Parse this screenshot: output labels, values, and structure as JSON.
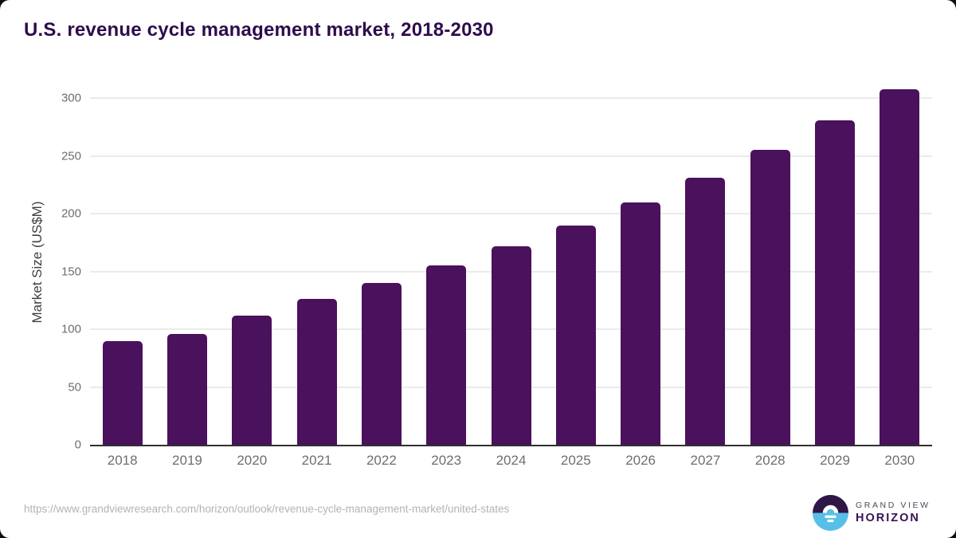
{
  "page": {
    "title": "U.S. revenue cycle management market, 2018-2030",
    "source_url": "https://www.grandviewresearch.com/horizon/outlook/revenue-cycle-management-market/united-states",
    "logo": {
      "line1": "GRAND VIEW",
      "line2": "HORIZON"
    }
  },
  "colors": {
    "bar": "#4a115c",
    "title_text": "#2e0c4c",
    "axis_line": "#303030",
    "gridline": "#ebebeb",
    "tick_label": "#6e6e6e",
    "axis_title": "#3f3f3f",
    "source_text": "#b3b3b3",
    "logo_purple": "#2e1747",
    "logo_blue": "#58bfe8",
    "logo_text_gray": "#4e4a58",
    "logo_text_purple": "#361253",
    "corner_background": "#0e0e0e"
  },
  "chart_data": {
    "type": "bar",
    "title": "U.S. revenue cycle management market, 2018-2030",
    "categories": [
      "2018",
      "2019",
      "2020",
      "2021",
      "2022",
      "2023",
      "2024",
      "2025",
      "2026",
      "2027",
      "2028",
      "2029",
      "2030"
    ],
    "values": [
      90,
      96,
      112,
      126,
      140,
      155,
      172,
      190,
      210,
      231,
      255,
      281,
      308
    ],
    "xlabel": "",
    "ylabel": "Market Size (US$M)",
    "ylim": [
      0,
      316
    ],
    "yticks": [
      0,
      50,
      100,
      150,
      200,
      250,
      300
    ],
    "grid": "horizontal-only",
    "legend": "none",
    "bar_color": "#4a115c",
    "bar_corner_radius": 5
  }
}
